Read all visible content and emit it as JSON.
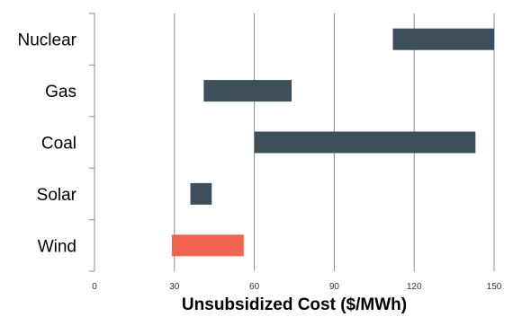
{
  "chart_data": {
    "type": "bar",
    "orientation": "horizontal-range",
    "categories": [
      "Nuclear",
      "Gas",
      "Coal",
      "Solar",
      "Wind"
    ],
    "ranges": [
      {
        "category": "Nuclear",
        "low": 112,
        "high": 150
      },
      {
        "category": "Gas",
        "low": 41,
        "high": 74
      },
      {
        "category": "Coal",
        "low": 60,
        "high": 143
      },
      {
        "category": "Solar",
        "low": 36,
        "high": 44
      },
      {
        "category": "Wind",
        "low": 29,
        "high": 56
      }
    ],
    "colors": {
      "Nuclear": "#3c4f5a",
      "Gas": "#3c4f5a",
      "Coal": "#3c4f5a",
      "Solar": "#3c4f5a",
      "Wind": "#f26451"
    },
    "xlabel": "Unsubsidized Cost ($/MWh)",
    "xlim": [
      0,
      150
    ],
    "xticks": [
      "0",
      "30",
      "60",
      "90",
      "120",
      "150"
    ],
    "grid": "vertical"
  }
}
